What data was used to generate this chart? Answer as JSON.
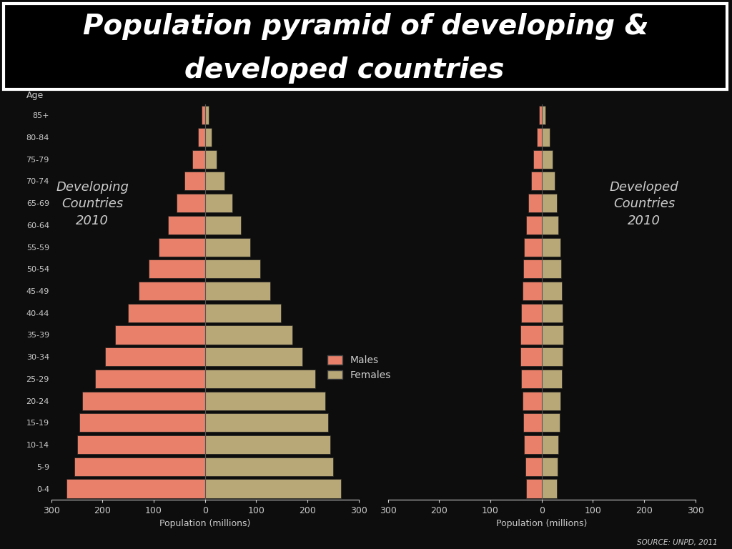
{
  "age_groups": [
    "0-4",
    "5-9",
    "10-14",
    "15-19",
    "20-24",
    "25-29",
    "30-34",
    "35-39",
    "40-44",
    "45-49",
    "50-54",
    "55-59",
    "60-64",
    "65-69",
    "70-74",
    "75-79",
    "80-84",
    "85+"
  ],
  "developing_males": [
    270,
    255,
    250,
    245,
    240,
    215,
    195,
    175,
    150,
    130,
    110,
    90,
    72,
    55,
    40,
    25,
    14,
    6
  ],
  "developing_females": [
    265,
    250,
    245,
    240,
    235,
    215,
    190,
    170,
    148,
    128,
    108,
    88,
    70,
    53,
    38,
    23,
    13,
    8
  ],
  "developed_males": [
    30,
    32,
    34,
    36,
    38,
    40,
    42,
    42,
    40,
    38,
    36,
    34,
    30,
    26,
    20,
    16,
    10,
    5
  ],
  "developed_females": [
    30,
    31,
    33,
    35,
    37,
    39,
    41,
    42,
    41,
    40,
    38,
    36,
    33,
    30,
    25,
    21,
    16,
    8
  ],
  "xlim": 300,
  "xlabel": "Population (millions)",
  "male_color": "#E8806A",
  "female_color": "#B8A878",
  "bg_color": "#0d0d0d",
  "text_color": "#CCCCCC",
  "title_bg": "#000000",
  "title_color": "#FFFFFF",
  "source_text": "SOURCE: UNPD, 2011",
  "developing_label": "Developing\nCountries\n2010",
  "developed_label": "Developed\nCountries\n2010",
  "age_label": "Age",
  "legend_males": "Males",
  "legend_females": "Females"
}
